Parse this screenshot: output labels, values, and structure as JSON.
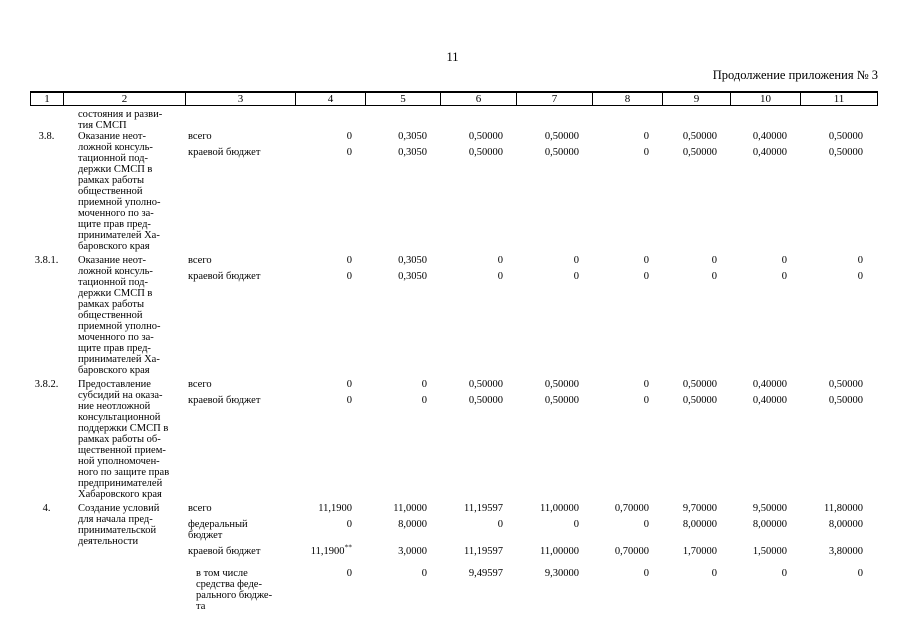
{
  "page": {
    "number": "11",
    "continuation": "Продолжение приложения № 3"
  },
  "table": {
    "column_numbers": [
      "1",
      "2",
      "3",
      "4",
      "5",
      "6",
      "7",
      "8",
      "9",
      "10",
      "11"
    ],
    "carryover_name_lines": [
      "состояния и разви-",
      "тия СМСП"
    ],
    "items": [
      {
        "num": "3.8.",
        "name_lines": [
          "Оказание неот-",
          "ложной консуль-",
          "тационной под-",
          "держки СМСП в",
          "рамках работы",
          "общественной",
          "приемной уполно-",
          "моченного по за-",
          "щите прав пред-",
          "принимателей Ха-",
          "баровского края"
        ],
        "budget_rows": [
          {
            "label_lines": [
              "всего"
            ],
            "values": [
              "0",
              "0,3050",
              "0,50000",
              "0,50000",
              "0",
              "0,50000",
              "0,40000",
              "0,50000"
            ]
          },
          {
            "label_lines": [
              "краевой бюджет"
            ],
            "values": [
              "0",
              "0,3050",
              "0,50000",
              "0,50000",
              "0",
              "0,50000",
              "0,40000",
              "0,50000"
            ]
          }
        ]
      },
      {
        "num": "3.8.1.",
        "name_lines": [
          "Оказание неот-",
          "ложной консуль-",
          "тационной под-",
          "держки СМСП в",
          "рамках работы",
          "общественной",
          "приемной уполно-",
          "моченного по за-",
          "щите прав пред-",
          "принимателей Ха-",
          "баровского края"
        ],
        "budget_rows": [
          {
            "label_lines": [
              "всего"
            ],
            "values": [
              "0",
              "0,3050",
              "0",
              "0",
              "0",
              "0",
              "0",
              "0"
            ]
          },
          {
            "label_lines": [
              "краевой бюджет"
            ],
            "values": [
              "0",
              "0,3050",
              "0",
              "0",
              "0",
              "0",
              "0",
              "0"
            ]
          }
        ]
      },
      {
        "num": "3.8.2.",
        "name_lines": [
          "Предоставление",
          "субсидий на оказа-",
          "ние неотложной",
          "консультационной",
          "поддержки СМСП в",
          "рамках работы об-",
          "щественной прием-",
          "ной уполномочен-",
          "ного по защите прав",
          "предпринимателей",
          "Хабаровского края"
        ],
        "budget_rows": [
          {
            "label_lines": [
              "всего"
            ],
            "values": [
              "0",
              "0",
              "0,50000",
              "0,50000",
              "0",
              "0,50000",
              "0,40000",
              "0,50000"
            ]
          },
          {
            "label_lines": [
              "краевой бюджет"
            ],
            "values": [
              "0",
              "0",
              "0,50000",
              "0,50000",
              "0",
              "0,50000",
              "0,40000",
              "0,50000"
            ]
          }
        ]
      },
      {
        "num": "4.",
        "name_lines": [
          "Создание условий",
          "для начала пред-",
          "принимательской",
          "деятельности"
        ],
        "budget_rows": [
          {
            "label_lines": [
              "всего"
            ],
            "values": [
              "11,1900",
              "11,0000",
              "11,19597",
              "11,00000",
              "0,70000",
              "9,70000",
              "9,50000",
              "11,80000"
            ]
          },
          {
            "label_lines": [
              "федеральный",
              "бюджет"
            ],
            "values": [
              "0",
              "8,0000",
              "0",
              "0",
              "0",
              "8,00000",
              "8,00000",
              "8,00000"
            ]
          },
          {
            "label_lines": [
              "краевой бюджет"
            ],
            "values": [
              {
                "text": "11,1900",
                "sup": "**"
              },
              "3,0000",
              "11,19597",
              "11,00000",
              "0,70000",
              "1,70000",
              "1,50000",
              "3,80000"
            ]
          },
          {
            "label_lines": [
              "в том числе",
              "средства феде-",
              "рального бюдже-",
              "та"
            ],
            "indent": true,
            "values": [
              "0",
              "0",
              "9,49597",
              "9,30000",
              "0",
              "0",
              "0",
              "0"
            ]
          }
        ]
      }
    ]
  }
}
